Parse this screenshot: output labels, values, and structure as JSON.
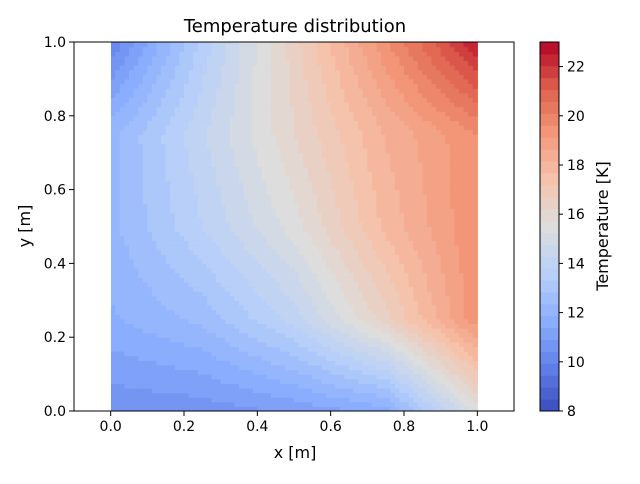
{
  "chart_data": {
    "type": "heatmap",
    "subtype": "filled-contour",
    "title": "Temperature distribution",
    "xlabel": "x [m]",
    "ylabel": "y [m]",
    "xlim": [
      -0.1,
      1.1
    ],
    "ylim": [
      0.0,
      1.0
    ],
    "domain_x": [
      0.0,
      1.0
    ],
    "domain_y": [
      0.0,
      1.0
    ],
    "xticks": [
      "0.0",
      "0.2",
      "0.4",
      "0.6",
      "0.8",
      "1.0"
    ],
    "yticks": [
      "0.0",
      "0.2",
      "0.4",
      "0.6",
      "0.8",
      "1.0"
    ],
    "colormap": "coolwarm",
    "grid": false,
    "colorbar": {
      "label": "Temperature [K]",
      "range": [
        8,
        23
      ],
      "ticks": [
        "8",
        "10",
        "12",
        "14",
        "16",
        "18",
        "20",
        "22"
      ],
      "levels": 31
    },
    "field_samples": {
      "x": [
        0.0,
        0.25,
        0.5,
        0.75,
        1.0
      ],
      "y": [
        0.0,
        0.25,
        0.5,
        0.75,
        1.0
      ],
      "z": [
        [
          10.5,
          10.6,
          11.0,
          11.6,
          15.5
        ],
        [
          11.8,
          12.5,
          14.0,
          16.5,
          19.5
        ],
        [
          12.2,
          13.8,
          15.5,
          17.8,
          19.6
        ],
        [
          12.2,
          14.2,
          16.2,
          18.2,
          19.6
        ],
        [
          10.0,
          13.5,
          16.5,
          19.5,
          22.5
        ]
      ]
    }
  }
}
